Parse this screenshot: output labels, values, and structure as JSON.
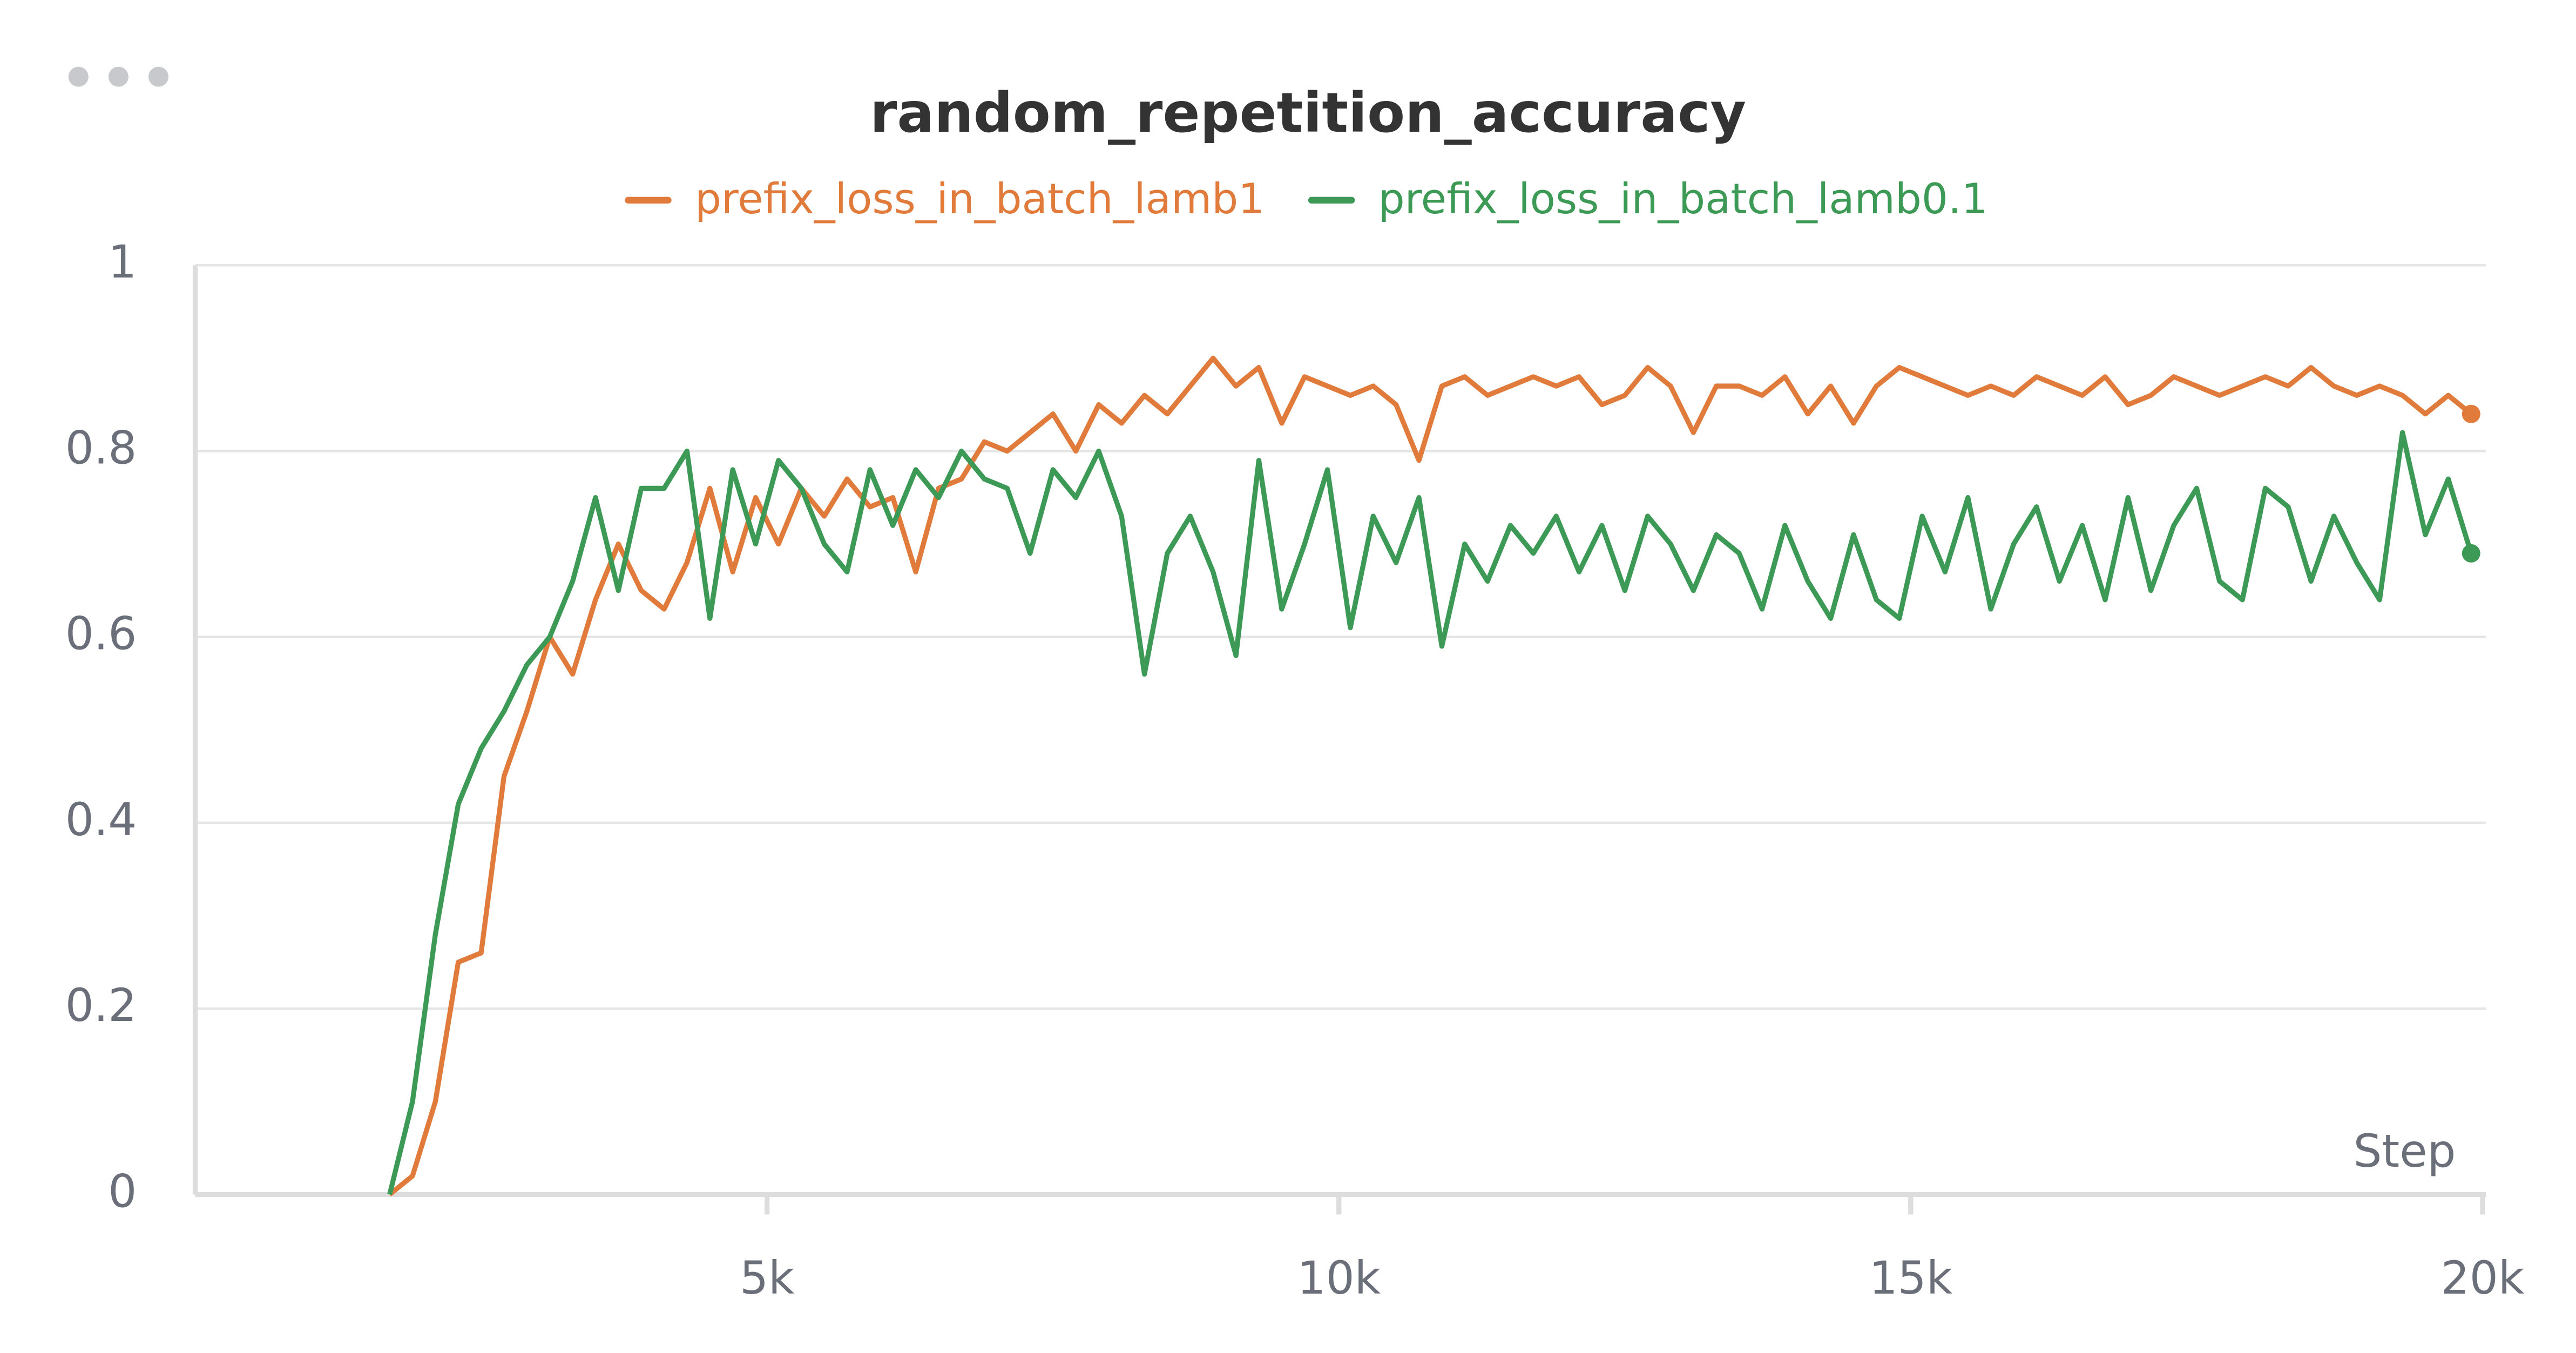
{
  "chart_data": {
    "type": "line",
    "title": "random_repetition_accuracy",
    "x_label": "Step",
    "x": [
      1700,
      1900,
      2100,
      2300,
      2500,
      2700,
      2900,
      3100,
      3300,
      3500,
      3700,
      3900,
      4100,
      4300,
      4500,
      4700,
      4900,
      5100,
      5300,
      5500,
      5700,
      5900,
      6100,
      6300,
      6500,
      6700,
      6900,
      7100,
      7300,
      7500,
      7700,
      7900,
      8100,
      8300,
      8500,
      8700,
      8900,
      9100,
      9300,
      9500,
      9700,
      9900,
      10100,
      10300,
      10500,
      10700,
      10900,
      11100,
      11300,
      11500,
      11700,
      11900,
      12100,
      12300,
      12500,
      12700,
      12900,
      13100,
      13300,
      13500,
      13700,
      13900,
      14100,
      14300,
      14500,
      14700,
      14900,
      15100,
      15300,
      15500,
      15700,
      15900,
      16100,
      16300,
      16500,
      16700,
      16900,
      17100,
      17300,
      17500,
      17700,
      17900,
      18100,
      18300,
      18500,
      18700,
      18900,
      19100,
      19300,
      19500,
      19700,
      19900
    ],
    "series": [
      {
        "name": "prefix_loss_in_batch_lamb1",
        "color": "#e07b3c",
        "values": [
          0,
          0.02,
          0.1,
          0.25,
          0.26,
          0.45,
          0.52,
          0.6,
          0.56,
          0.64,
          0.7,
          0.65,
          0.63,
          0.68,
          0.76,
          0.67,
          0.75,
          0.7,
          0.76,
          0.73,
          0.77,
          0.74,
          0.75,
          0.67,
          0.76,
          0.77,
          0.81,
          0.8,
          0.82,
          0.84,
          0.8,
          0.85,
          0.83,
          0.86,
          0.84,
          0.87,
          0.9,
          0.87,
          0.89,
          0.83,
          0.88,
          0.87,
          0.86,
          0.87,
          0.85,
          0.79,
          0.87,
          0.88,
          0.86,
          0.87,
          0.88,
          0.87,
          0.88,
          0.85,
          0.86,
          0.89,
          0.87,
          0.82,
          0.87,
          0.87,
          0.86,
          0.88,
          0.84,
          0.87,
          0.83,
          0.87,
          0.89,
          0.88,
          0.87,
          0.86,
          0.87,
          0.86,
          0.88,
          0.87,
          0.86,
          0.88,
          0.85,
          0.86,
          0.88,
          0.87,
          0.86,
          0.87,
          0.88,
          0.87,
          0.89,
          0.87,
          0.86,
          0.87,
          0.86,
          0.84,
          0.86,
          0.84
        ]
      },
      {
        "name": "prefix_loss_in_batch_lamb0.1",
        "color": "#3d9a56",
        "values": [
          0,
          0.1,
          0.28,
          0.42,
          0.48,
          0.52,
          0.57,
          0.6,
          0.66,
          0.75,
          0.65,
          0.76,
          0.76,
          0.8,
          0.62,
          0.78,
          0.7,
          0.79,
          0.76,
          0.7,
          0.67,
          0.78,
          0.72,
          0.78,
          0.75,
          0.8,
          0.77,
          0.76,
          0.69,
          0.78,
          0.75,
          0.8,
          0.73,
          0.56,
          0.69,
          0.73,
          0.67,
          0.58,
          0.79,
          0.63,
          0.7,
          0.78,
          0.61,
          0.73,
          0.68,
          0.75,
          0.59,
          0.7,
          0.66,
          0.72,
          0.69,
          0.73,
          0.67,
          0.72,
          0.65,
          0.73,
          0.7,
          0.65,
          0.71,
          0.69,
          0.63,
          0.72,
          0.66,
          0.62,
          0.71,
          0.64,
          0.62,
          0.73,
          0.67,
          0.75,
          0.63,
          0.7,
          0.74,
          0.66,
          0.72,
          0.64,
          0.75,
          0.65,
          0.72,
          0.76,
          0.66,
          0.64,
          0.76,
          0.74,
          0.66,
          0.73,
          0.68,
          0.64,
          0.82,
          0.71,
          0.77,
          0.69
        ]
      }
    ],
    "xlim": [
      0,
      20000
    ],
    "xticks": [
      {
        "value": 5000,
        "label": "5k"
      },
      {
        "value": 10000,
        "label": "10k"
      },
      {
        "value": 15000,
        "label": "15k"
      },
      {
        "value": 20000,
        "label": "20k"
      }
    ],
    "ylim": [
      0,
      1
    ],
    "yticks": [
      0,
      0.2,
      0.4,
      0.6,
      0.8,
      1
    ],
    "grid": true
  }
}
